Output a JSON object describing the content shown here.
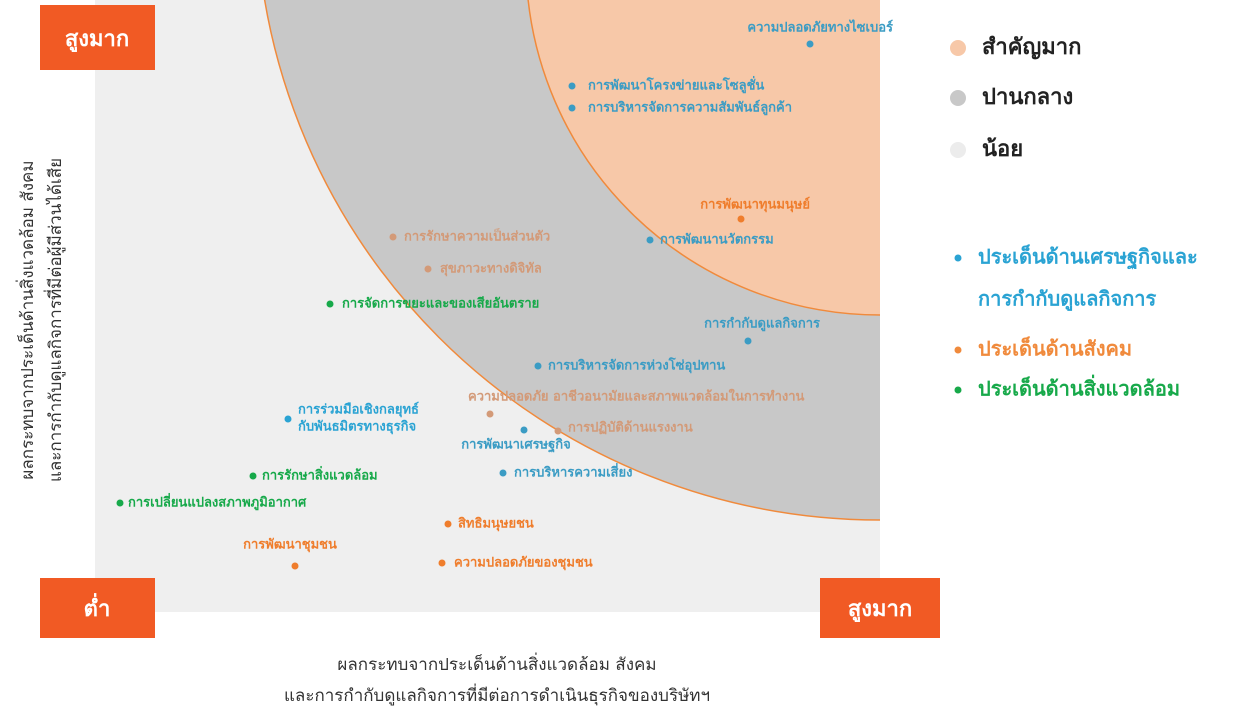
{
  "corners": {
    "top_left": "สูงมาก",
    "bottom_left": "ต่ำ",
    "bottom_right": "สูงมาก"
  },
  "y_axis_label": [
    "ผลกระทบจากประเด็นด้านสิ่งแวดล้อม สังคม",
    "และการกำกับดูแลกิจการที่มีต่อผู้มีส่วนได้เสีย"
  ],
  "x_axis_label": [
    "ผลกระทบจากประเด็นด้านสิ่งแวดล้อม สังคม",
    "และการกำกับดูแลกิจการที่มีต่อการดำเนินธุรกิจของบริษัทฯ"
  ],
  "levels": [
    {
      "label": "สำคัญมาก",
      "color": "#f7c8a8"
    },
    {
      "label": "ปานกลาง",
      "color": "#c8c8c8"
    },
    {
      "label": "น้อย",
      "color": "#ececec"
    }
  ],
  "topics": [
    {
      "lines": [
        "ประเด็นด้านเศรษฐกิจและ",
        "การกำกับดูแลกิจการ"
      ],
      "color": "#2aa3d3"
    },
    {
      "lines": [
        "ประเด็นด้านสังคม"
      ],
      "color": "#f08a3c"
    },
    {
      "lines": [
        "ประเด็นด้านสิ่งแวดล้อม"
      ],
      "color": "#17a94a"
    }
  ],
  "nodes": [
    {
      "lines": [
        "ความปลอดภัยทางไซเบอร์"
      ],
      "color": "#3b9cc4"
    },
    {
      "lines": [
        "การพัฒนาโครงข่ายและโซลูชั่น"
      ],
      "color": "#3b9cc4"
    },
    {
      "lines": [
        "การบริหารจัดการความสัมพันธ์ลูกค้า"
      ],
      "color": "#3b9cc4"
    },
    {
      "lines": [
        "การพัฒนาทุนมนุษย์"
      ],
      "color": "#ef7d2c"
    },
    {
      "lines": [
        "การพัฒนานวัตกรรม"
      ],
      "color": "#3b9cc4"
    },
    {
      "lines": [
        "การรักษาความเป็นส่วนตัว"
      ],
      "color": "#d39a78"
    },
    {
      "lines": [
        "สุขภาวะทางดิจิทัล"
      ],
      "color": "#d39a78"
    },
    {
      "lines": [
        "การจัดการขยะและของเสียอันตราย"
      ],
      "color": "#17a94a"
    },
    {
      "lines": [
        "การกำกับดูแลกิจการ"
      ],
      "color": "#3b9cc4"
    },
    {
      "lines": [
        "การบริหารจัดการห่วงโซ่อุปทาน"
      ],
      "color": "#3b9cc4"
    },
    {
      "lines": [
        "ความปลอดภัย อาชีวอนามัยและสภาพแวดล้อมในการทำงาน"
      ],
      "color": "#d39a78"
    },
    {
      "lines": [
        "การปฏิบัติด้านแรงงาน"
      ],
      "color": "#d39a78"
    },
    {
      "lines": [
        "การร่วมมือเชิงกลยุทธ์",
        "กับพันธมิตรทางธุรกิจ"
      ],
      "color": "#2aa3d3"
    },
    {
      "lines": [
        "การพัฒนาเศรษฐกิจ"
      ],
      "color": "#3b9cc4"
    },
    {
      "lines": [
        "การรักษาสิ่งแวดล้อม"
      ],
      "color": "#17a94a"
    },
    {
      "lines": [
        "การบริหารความเสี่ยง"
      ],
      "color": "#3b9cc4"
    },
    {
      "lines": [
        "การเปลี่ยนแปลงสภาพภูมิอากาศ"
      ],
      "color": "#17a94a"
    },
    {
      "lines": [
        "สิทธิมนุษยชน"
      ],
      "color": "#ef7d2c"
    },
    {
      "lines": [
        "การพัฒนาชุมชน"
      ],
      "color": "#ef7d2c"
    },
    {
      "lines": [
        "ความปลอดภัยของชุมชน"
      ],
      "color": "#ef7d2c"
    }
  ]
}
